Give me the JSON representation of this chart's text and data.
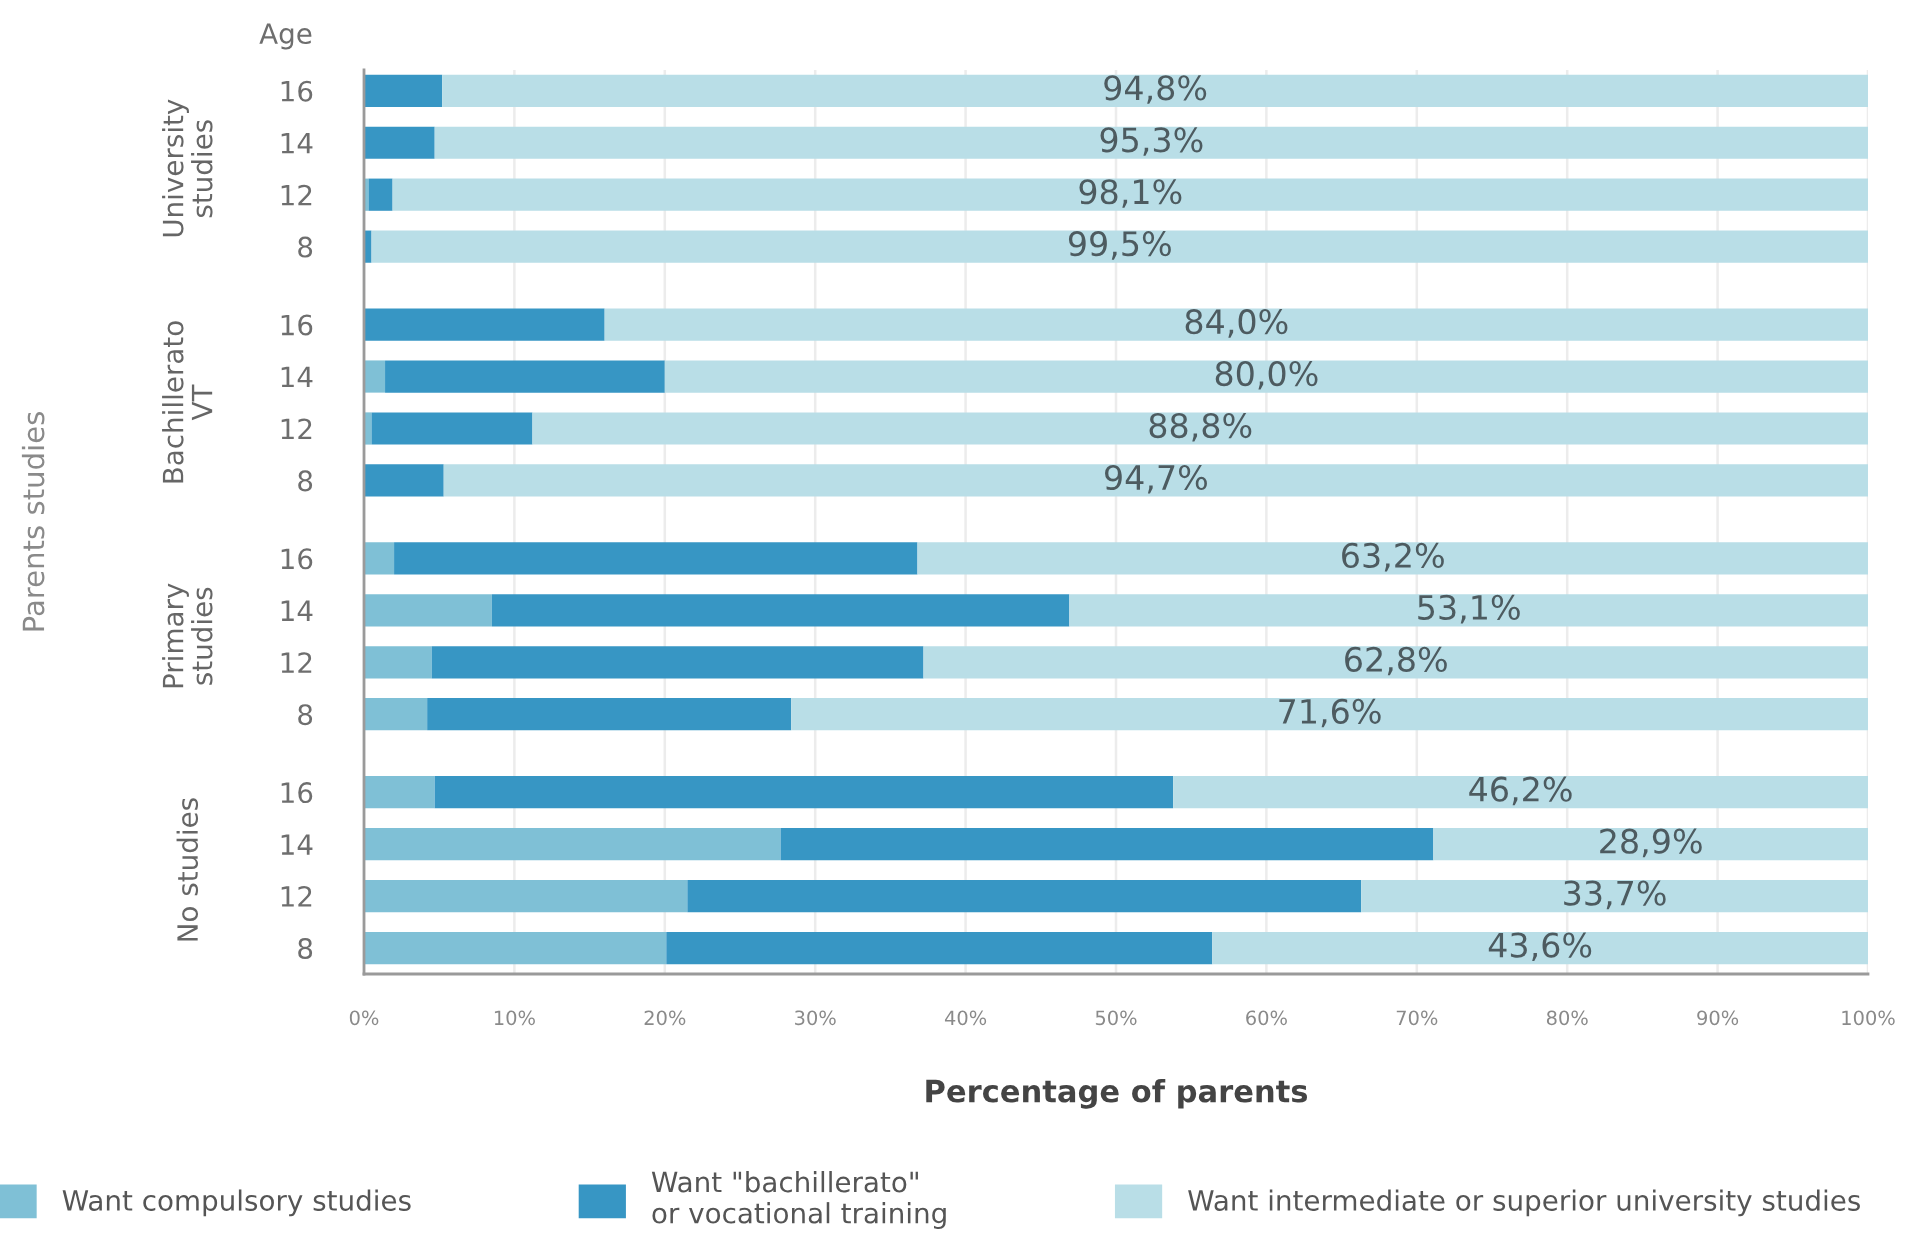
{
  "chart_data": {
    "type": "bar",
    "orientation": "horizontal",
    "stacked": true,
    "xlabel": "Percentage of parents",
    "annotations": [
      "Parents studies",
      "Age",
      "University\nstudies",
      "Bachillerato\nVT",
      "Primary\nstudies",
      "No studies"
    ],
    "categories": [
      "16",
      "14",
      "12",
      "8",
      "16",
      "14",
      "12",
      "8",
      "16",
      "14",
      "12",
      "8",
      "16",
      "14",
      "12",
      "8"
    ],
    "series": [
      {
        "name": "Want compulsory studies",
        "color": "#7fc0d6",
        "values": [
          null,
          null,
          0.3,
          null,
          null,
          1.4,
          0.5,
          null,
          2.0,
          8.5,
          4.5,
          4.2,
          4.7,
          27.7,
          21.5,
          20.1
        ]
      },
      {
        "name": "Want \"bachillerato\"\nor vocational training",
        "color": "#3796c4",
        "values": [
          5.2,
          4.7,
          1.6,
          0.5,
          16.0,
          18.6,
          10.7,
          5.3,
          34.8,
          38.4,
          32.7,
          24.2,
          49.1,
          43.4,
          44.8,
          36.3
        ]
      },
      {
        "name": "Want intermediate or superior university studies",
        "color": "#b9dee7",
        "values": [
          94.8,
          95.3,
          98.1,
          99.5,
          84.0,
          80.0,
          88.8,
          94.7,
          63.2,
          53.1,
          62.8,
          71.6,
          46.2,
          28.9,
          33.7,
          43.6
        ],
        "value_labels": [
          "94,8%",
          "95,3%",
          "98,1%",
          "99,5%",
          "84,0%",
          "80,0%",
          "88,8%",
          "94,7%",
          "63,2%",
          "53,1%",
          "62,8%",
          "71,6%",
          "46,2%",
          "28,9%",
          "33,7%",
          "43,6%"
        ]
      }
    ],
    "xlim": [
      0,
      100
    ],
    "xticks": [
      {
        "value": 0,
        "label": "0%"
      },
      {
        "value": 10,
        "label": "10%"
      },
      {
        "value": 20,
        "label": "20%"
      },
      {
        "value": 30,
        "label": "30%"
      },
      {
        "value": 40,
        "label": "40%"
      },
      {
        "value": 50,
        "label": "50%"
      },
      {
        "value": 60,
        "label": "60%"
      },
      {
        "value": 70,
        "label": "70%"
      },
      {
        "value": 80,
        "label": "80%"
      },
      {
        "value": 90,
        "label": "90%"
      },
      {
        "value": 100,
        "label": "100%"
      }
    ],
    "grid": "x",
    "legend": "bottom"
  }
}
